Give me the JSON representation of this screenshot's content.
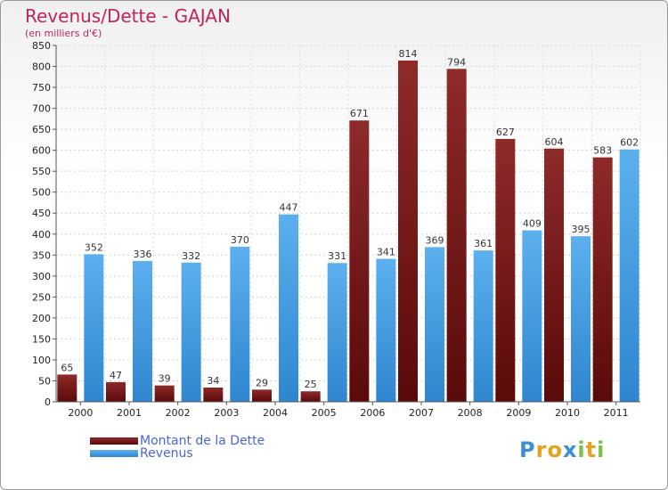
{
  "title": "Revenus/Dette - GAJAN",
  "subtitle": "(en milliers d'€)",
  "logo_text": "Proxiti",
  "chart_data": {
    "type": "bar",
    "title": "Revenus/Dette - GAJAN",
    "subtitle": "(en milliers d'€)",
    "categories": [
      "2000",
      "2001",
      "2002",
      "2003",
      "2004",
      "2005",
      "2006",
      "2007",
      "2008",
      "2009",
      "2010",
      "2011"
    ],
    "series": [
      {
        "name": "Montant de la Dette",
        "color": "#7a1c1c",
        "values": [
          65,
          47,
          39,
          34,
          29,
          25,
          671,
          814,
          794,
          627,
          604,
          583
        ]
      },
      {
        "name": "Revenus",
        "color": "#4ea6e6",
        "values": [
          352,
          336,
          332,
          370,
          447,
          331,
          341,
          369,
          361,
          409,
          395,
          602
        ]
      }
    ],
    "ylim": [
      0,
      850
    ],
    "yticks": [
      0,
      50,
      100,
      150,
      200,
      250,
      300,
      350,
      400,
      450,
      500,
      550,
      600,
      650,
      700,
      750,
      800,
      850
    ],
    "grid": true,
    "legend_position": "bottom-left"
  }
}
